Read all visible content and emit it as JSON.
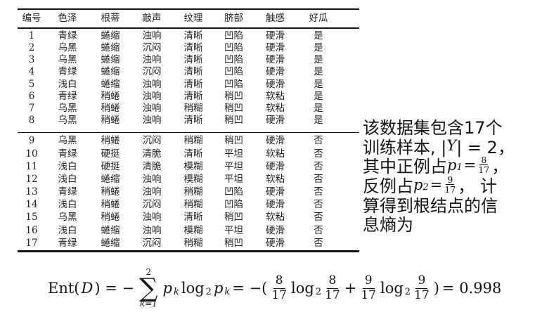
{
  "colors": {
    "background": "#ffffff",
    "text": "#1c1c1c",
    "rule": "#141414"
  },
  "table": {
    "headers": [
      "编号",
      "色泽",
      "根蒂",
      "敲声",
      "纹理",
      "脐部",
      "触感",
      "好瓜"
    ],
    "groups": [
      {
        "rows": [
          [
            "1",
            "青绿",
            "蜷缩",
            "浊响",
            "清晰",
            "凹陷",
            "硬滑",
            "是"
          ],
          [
            "2",
            "乌黑",
            "蜷缩",
            "沉闷",
            "清晰",
            "凹陷",
            "硬滑",
            "是"
          ],
          [
            "3",
            "乌黑",
            "蜷缩",
            "浊响",
            "清晰",
            "凹陷",
            "硬滑",
            "是"
          ],
          [
            "4",
            "青绿",
            "蜷缩",
            "沉闷",
            "清晰",
            "凹陷",
            "硬滑",
            "是"
          ],
          [
            "5",
            "浅白",
            "蜷缩",
            "浊响",
            "清晰",
            "凹陷",
            "硬滑",
            "是"
          ],
          [
            "6",
            "青绿",
            "稍蜷",
            "浊响",
            "清晰",
            "稍凹",
            "软粘",
            "是"
          ],
          [
            "7",
            "乌黑",
            "稍蜷",
            "浊响",
            "稍糊",
            "稍凹",
            "软粘",
            "是"
          ],
          [
            "8",
            "乌黑",
            "稍蜷",
            "浊响",
            "清晰",
            "稍凹",
            "硬滑",
            "是"
          ]
        ]
      },
      {
        "rows": [
          [
            "9",
            "乌黑",
            "稍蜷",
            "沉闷",
            "稍糊",
            "稍凹",
            "硬滑",
            "否"
          ],
          [
            "10",
            "青绿",
            "硬挺",
            "清脆",
            "清晰",
            "平坦",
            "软粘",
            "否"
          ],
          [
            "11",
            "浅白",
            "硬挺",
            "清脆",
            "模糊",
            "平坦",
            "硬滑",
            "否"
          ],
          [
            "12",
            "浅白",
            "蜷缩",
            "浊响",
            "模糊",
            "平坦",
            "软粘",
            "否"
          ],
          [
            "13",
            "青绿",
            "稍蜷",
            "浊响",
            "稍糊",
            "凹陷",
            "硬滑",
            "否"
          ],
          [
            "14",
            "浅白",
            "稍蜷",
            "沉闷",
            "稍糊",
            "凹陷",
            "硬滑",
            "否"
          ],
          [
            "15",
            "乌黑",
            "稍蜷",
            "浊响",
            "清晰",
            "稍凹",
            "软粘",
            "否"
          ],
          [
            "16",
            "浅白",
            "蜷缩",
            "浊响",
            "模糊",
            "平坦",
            "硬滑",
            "否"
          ],
          [
            "17",
            "青绿",
            "蜷缩",
            "沉闷",
            "稍糊",
            "稍凹",
            "硬滑",
            "否"
          ]
        ]
      }
    ]
  },
  "side_note": {
    "line1": "该数据集包含17个",
    "line2": {
      "prefix": "训练样本, |",
      "set_symbol": "Y",
      "suffix": "| = 2，"
    },
    "line3": {
      "prefix": "其中正例占 ",
      "var": "p",
      "sub": "1",
      "eq": " = ",
      "frac_num": "8",
      "frac_den": "17",
      "suffix": "，"
    },
    "line4": {
      "prefix": "反例占 ",
      "var": "p",
      "sub": "2",
      "eq": " = ",
      "frac_num": "9",
      "frac_den": "17",
      "suffix": "， 计"
    },
    "line5": "算得到根结点的信",
    "line6": "息熵为"
  },
  "formula": {
    "lhs_name": "Ent(",
    "lhs_var": "D",
    "lhs_close": ") = −",
    "sum_upper": "2",
    "sum_sigma": "∑",
    "sum_lower": "k=1",
    "term_p": "p",
    "term_p_sub": "k",
    "log": "log",
    "log_sub": "2",
    "term_p2": "p",
    "term_p2_sub": "k",
    "mid": "= −(",
    "frac1_num": "8",
    "frac1_den": "17",
    "frac2_num": "8",
    "frac2_den": "17",
    "plus": "+",
    "frac3_num": "9",
    "frac3_den": "17",
    "frac4_num": "9",
    "frac4_den": "17",
    "close": ")",
    "result": "= 0.998"
  }
}
